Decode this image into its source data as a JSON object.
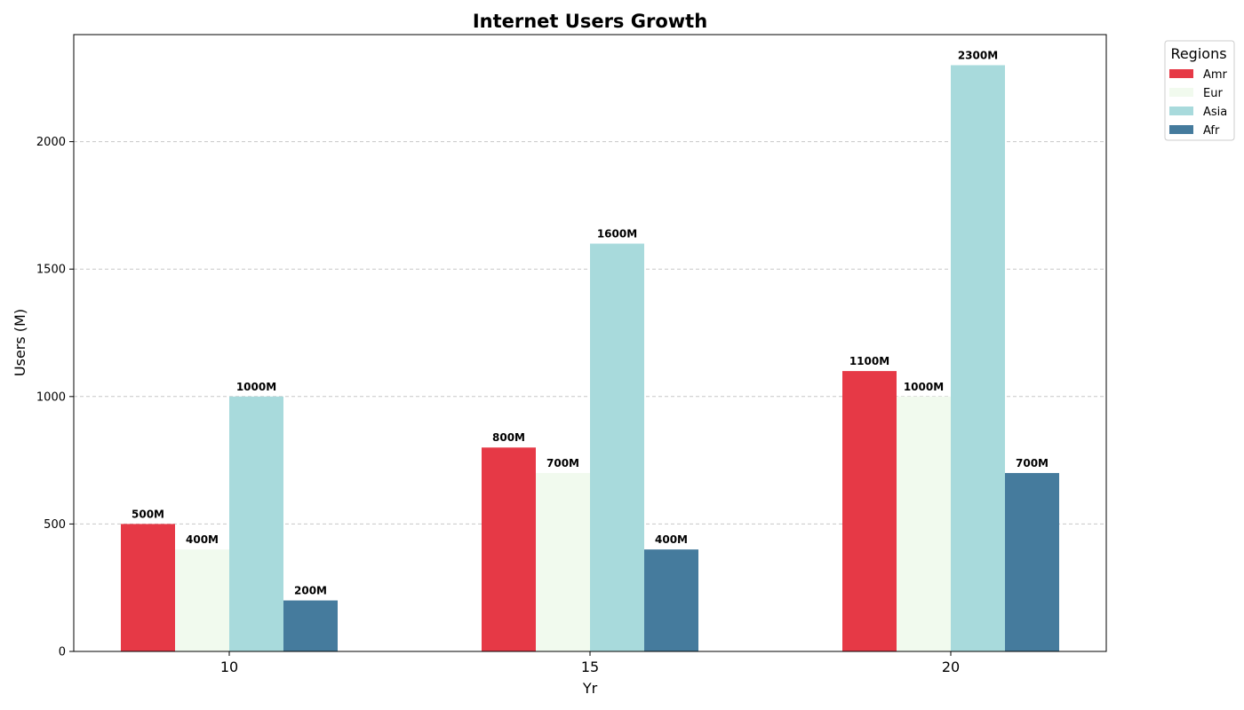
{
  "chart_data": {
    "type": "bar",
    "title": "Internet Users Growth",
    "xlabel": "Yr",
    "ylabel": "Users (M)",
    "categories": [
      "10",
      "15",
      "20"
    ],
    "ylim": [
      0,
      2420
    ],
    "yticks": [
      0,
      500,
      1000,
      1500,
      2000
    ],
    "grid": "y-dashed",
    "legend": {
      "title": "Regions",
      "placement": "outside-top-right"
    },
    "series": [
      {
        "name": "Amr",
        "color": "#e63946",
        "values": [
          500,
          800,
          1100
        ],
        "labels": [
          "500M",
          "800M",
          "1100M"
        ]
      },
      {
        "name": "Eur",
        "color": "#f1faee",
        "values": [
          400,
          700,
          1000
        ],
        "labels": [
          "400M",
          "700M",
          "1000M"
        ]
      },
      {
        "name": "Asia",
        "color": "#a8dadc",
        "values": [
          1000,
          1600,
          2300
        ],
        "labels": [
          "1000M",
          "1600M",
          "2300M"
        ]
      },
      {
        "name": "Afr",
        "color": "#457b9d",
        "values": [
          200,
          400,
          700
        ],
        "labels": [
          "200M",
          "400M",
          "700M"
        ]
      }
    ]
  }
}
